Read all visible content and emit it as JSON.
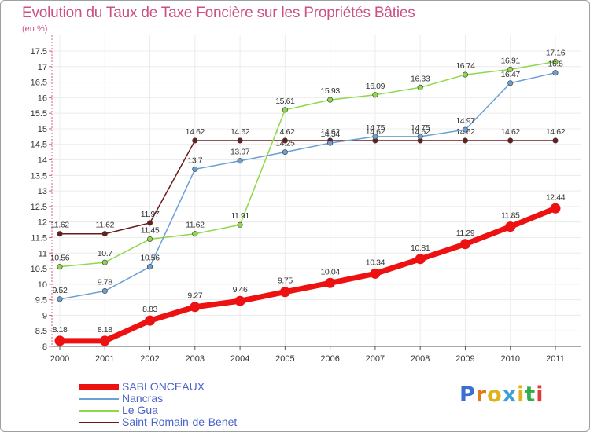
{
  "title": "Evolution du Taux de Taxe Foncière sur les Propriétés Bâties",
  "subtitle": "(en %)",
  "chart_data": {
    "type": "line",
    "title": "Evolution du Taux de Taxe Foncière sur les Propriétés Bâties",
    "ylabel": "(en %)",
    "xlabel": "",
    "x": [
      "2000",
      "2001",
      "2002",
      "2003",
      "2004",
      "2005",
      "2006",
      "2007",
      "2008",
      "2009",
      "2010",
      "2011"
    ],
    "ylim": [
      8,
      17.5
    ],
    "yticks": [
      8,
      8.5,
      9,
      9.5,
      10,
      10.5,
      11,
      11.5,
      12,
      12.5,
      13,
      13.5,
      14,
      14.5,
      15,
      15.5,
      16,
      16.5,
      17,
      17.5
    ],
    "ytick_labels": [
      "8",
      "8.5",
      "9",
      "9.5",
      "10",
      "10.5",
      "11",
      "11.5",
      "12",
      "12.5",
      "13",
      "13.5",
      "14",
      "14.5",
      "15",
      "15.5",
      "16",
      "16.5",
      "17",
      "17.5"
    ],
    "grid": true,
    "legend": "bottom-left",
    "series": [
      {
        "name": "Saint-Romain-de-Benet",
        "color": "#6b1b1b",
        "values": [
          11.62,
          11.62,
          11.97,
          14.62,
          14.62,
          14.62,
          14.62,
          14.62,
          14.62,
          14.62,
          14.62,
          14.62
        ],
        "labels": [
          "11.62",
          "11.62",
          "11.97",
          "14.62",
          "14.62",
          "14.62",
          "14.62",
          "14.62",
          "14.62",
          "14.62",
          "14.62",
          "14.62"
        ]
      },
      {
        "name": "Le Gua",
        "color": "#8ed84a",
        "values": [
          10.56,
          10.7,
          11.45,
          11.62,
          11.91,
          15.61,
          15.93,
          16.09,
          16.33,
          16.74,
          16.91,
          17.16
        ],
        "labels": [
          "10.56",
          "10.7",
          "11.45",
          "11.62",
          "11.91",
          "15.61",
          "15.93",
          "16.09",
          "16.33",
          "16.74",
          "16.91",
          "17.16"
        ]
      },
      {
        "name": "Nancras",
        "color": "#6aa0d4",
        "values": [
          9.52,
          9.78,
          10.56,
          13.7,
          13.97,
          14.25,
          14.54,
          14.75,
          14.75,
          14.97,
          16.47,
          16.8
        ],
        "labels": [
          "9.52",
          "9.78",
          "10.56",
          "13.7",
          "13.97",
          "14.25",
          "14.54",
          "14.75",
          "14.75",
          "14.97",
          "16.47",
          "16.8"
        ]
      },
      {
        "name": "SABLONCEAUX",
        "color": "#ee1111",
        "values": [
          8.18,
          8.18,
          8.83,
          9.27,
          9.46,
          9.75,
          10.04,
          10.34,
          10.81,
          11.29,
          11.85,
          12.44
        ],
        "labels": [
          "8.18",
          "8.18",
          "8.83",
          "9.27",
          "9.46",
          "9.75",
          "10.04",
          "10.34",
          "10.81",
          "11.29",
          "11.85",
          "12.44"
        ]
      }
    ]
  },
  "legend": [
    {
      "label": "SABLONCEAUX",
      "color": "#ee1111"
    },
    {
      "label": "Nancras",
      "color": "#6aa0d4"
    },
    {
      "label": "Le Gua",
      "color": "#8ed84a"
    },
    {
      "label": "Saint-Romain-de-Benet",
      "color": "#6b1b1b"
    }
  ],
  "logo": {
    "letters": [
      "P",
      "r",
      "o",
      "x",
      "i",
      "t",
      "i"
    ],
    "colors": [
      "#3b6fd0",
      "#e07a1c",
      "#e0b31c",
      "#3aa0d8",
      "#e0b31c",
      "#2fae4a",
      "#e03a3a"
    ]
  }
}
